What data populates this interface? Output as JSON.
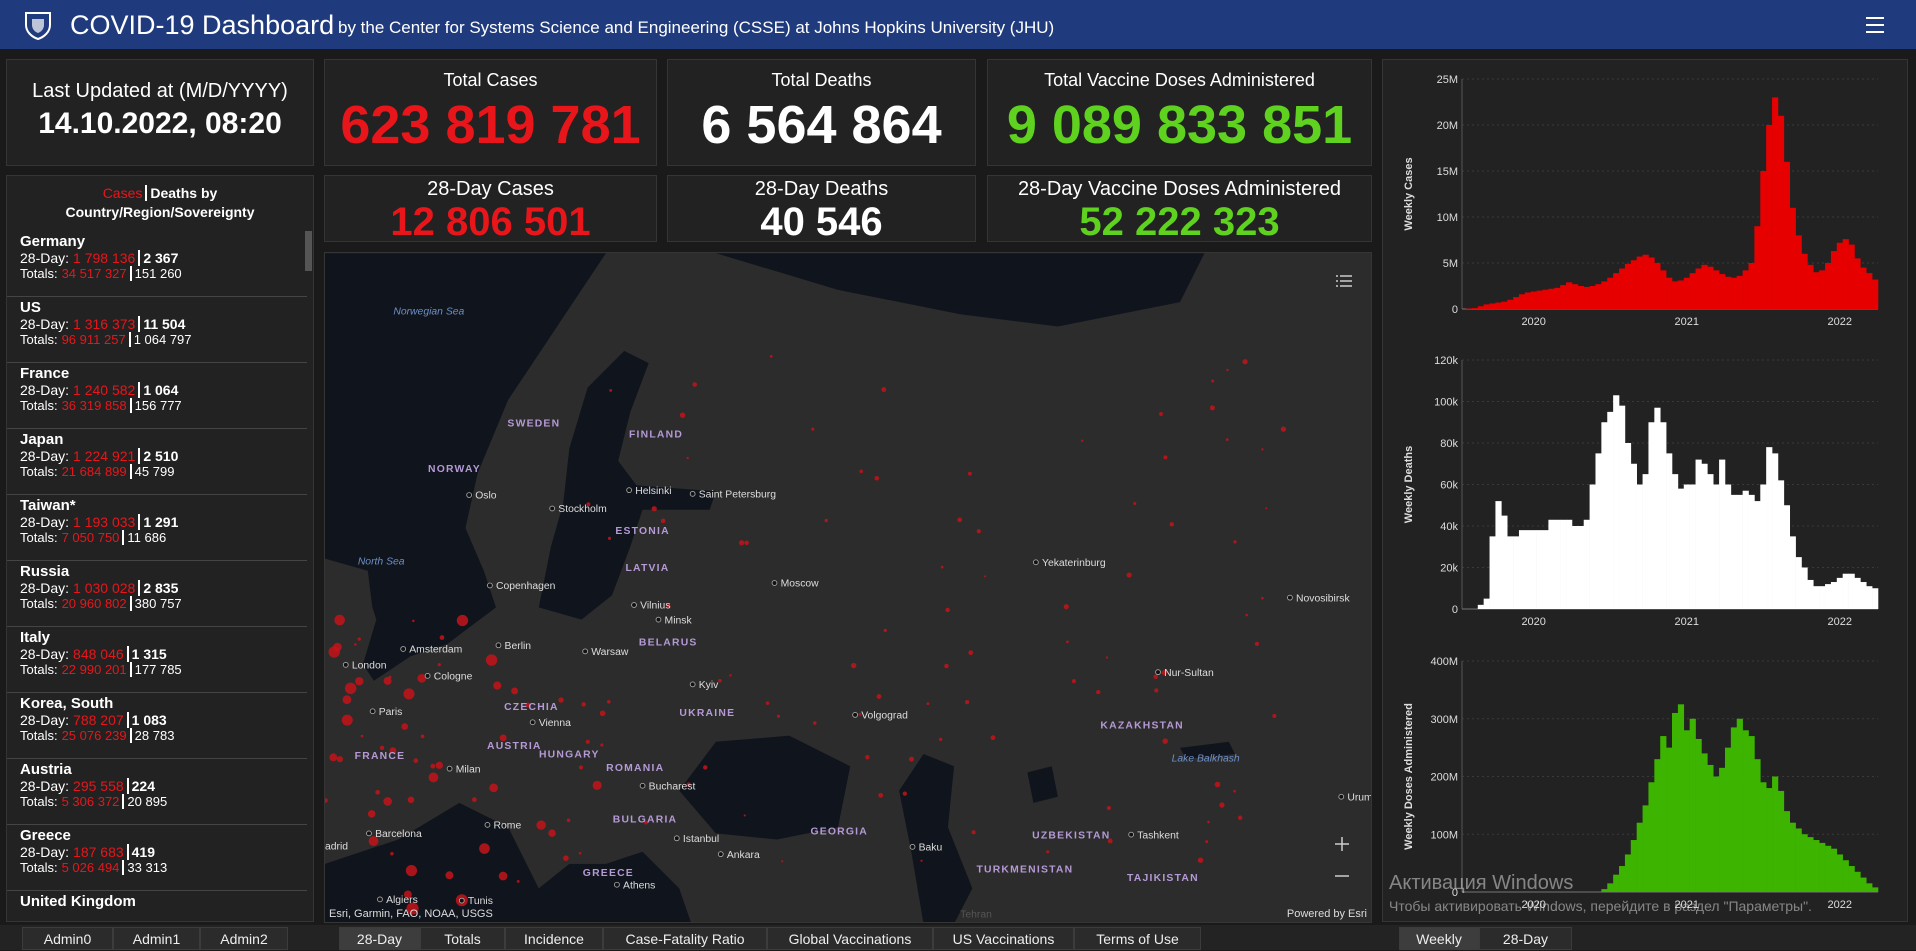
{
  "header": {
    "title": "COVID-19 Dashboard",
    "subtitle": "by the Center for Systems Science and Engineering (CSSE) at Johns Hopkins University (JHU)"
  },
  "last_updated": {
    "label": "Last Updated at (M/D/YYYY)",
    "value": "14.10.2022, 08:20"
  },
  "totals": [
    {
      "label": "Total Cases",
      "value": "623 819 781"
    },
    {
      "label": "Total Deaths",
      "value": "6 564 864"
    },
    {
      "label": "Total Vaccine Doses Administered",
      "value": "9 089 833 851"
    }
  ],
  "day28": [
    {
      "label": "28-Day Cases",
      "value": "12 806 501"
    },
    {
      "label": "28-Day Deaths",
      "value": "40 546"
    },
    {
      "label": "28-Day Vaccine Doses Administered",
      "value": "52 222 323"
    }
  ],
  "country_list": {
    "header": {
      "cases": "Cases",
      "deaths_by": "Deaths by",
      "region": "Country/Region/Sovereignty"
    },
    "labels": {
      "day28": "28-Day:",
      "totals": "Totals:"
    },
    "entries": [
      {
        "name": "Germany",
        "day28_cases": "1 798 136",
        "day28_deaths": "2 367",
        "total_cases": "34 517 327",
        "total_deaths": "151 260"
      },
      {
        "name": "US",
        "day28_cases": "1 316 373",
        "day28_deaths": "11 504",
        "total_cases": "96 911 257",
        "total_deaths": "1 064 797"
      },
      {
        "name": "France",
        "day28_cases": "1 240 582",
        "day28_deaths": "1 064",
        "total_cases": "36 319 858",
        "total_deaths": "156 777"
      },
      {
        "name": "Japan",
        "day28_cases": "1 224 921",
        "day28_deaths": "2 510",
        "total_cases": "21 684 899",
        "total_deaths": "45 799"
      },
      {
        "name": "Taiwan*",
        "day28_cases": "1 193 033",
        "day28_deaths": "1 291",
        "total_cases": "7 050 750",
        "total_deaths": "11 686"
      },
      {
        "name": "Russia",
        "day28_cases": "1 030 028",
        "day28_deaths": "2 835",
        "total_cases": "20 960 802",
        "total_deaths": "380 757"
      },
      {
        "name": "Italy",
        "day28_cases": "848 046",
        "day28_deaths": "1 315",
        "total_cases": "22 990 201",
        "total_deaths": "177 785"
      },
      {
        "name": "Korea, South",
        "day28_cases": "788 207",
        "day28_deaths": "1 083",
        "total_cases": "25 076 239",
        "total_deaths": "28 783"
      },
      {
        "name": "Austria",
        "day28_cases": "295 558",
        "day28_deaths": "224",
        "total_cases": "5 306 372",
        "total_deaths": "20 895"
      },
      {
        "name": "Greece",
        "day28_cases": "187 683",
        "day28_deaths": "419",
        "total_cases": "5 026 494",
        "total_deaths": "33 313"
      },
      {
        "name": "United Kingdom"
      }
    ]
  },
  "map": {
    "labels": [
      "Norwegian Sea",
      "North Sea",
      "SWEDEN",
      "FINLAND",
      "NORWAY",
      "ESTONIA",
      "LATVIA",
      "BELARUS",
      "UKRAINE",
      "CZECHIA",
      "AUSTRIA",
      "HUNGARY",
      "ROMANIA",
      "BULGARIA",
      "GREECE",
      "FRANCE",
      "GEORGIA",
      "KAZAKHSTAN",
      "UZBEKISTAN",
      "TURKMENISTAN",
      "TAJIKISTAN",
      "Lake Balkhash",
      "Oslo",
      "Stockholm",
      "Helsinki",
      "Saint Petersburg",
      "Copenhagen",
      "Vilnius",
      "Minsk",
      "Moscow",
      "Warsaw",
      "Berlin",
      "Amsterdam",
      "London",
      "Cologne",
      "Paris",
      "Kyiv",
      "Vienna",
      "Milan",
      "Rome",
      "Bucharest",
      "Volgograd",
      "Istanbul",
      "Ankara",
      "Athens",
      "Barcelona",
      "Algiers",
      "Tunis",
      "Baku",
      "Yekaterinburg",
      "Novosibirsk",
      "Nur-Sultan",
      "Tashkent",
      "Urum",
      "adrid",
      "Tehran"
    ],
    "attribution": "Esri, Garmin, FAO, NOAA, USGS",
    "powered_by": "Powered by Esri"
  },
  "chart_data": [
    {
      "type": "bar",
      "y_label": "Weekly Cases",
      "color": "#e60000",
      "ylim": [
        0,
        25000000
      ],
      "yticks": [
        0,
        {
          "value": 5000000,
          "label": "5M"
        },
        {
          "value": 10000000,
          "label": "10M"
        },
        {
          "value": 15000000,
          "label": "15M"
        },
        {
          "value": 20000000,
          "label": "20M"
        },
        {
          "value": 25000000,
          "label": "25M"
        }
      ],
      "grid": true,
      "categories": [
        null,
        null,
        null,
        null,
        null,
        null,
        null,
        null,
        null,
        null,
        null,
        "2020",
        null,
        null,
        null,
        null,
        null,
        null,
        null,
        null,
        null,
        null,
        null,
        null,
        null,
        null,
        null,
        null,
        null,
        null,
        null,
        null,
        null,
        null,
        null,
        null,
        null,
        "2021",
        null,
        null,
        null,
        null,
        null,
        null,
        null,
        null,
        null,
        null,
        null,
        null,
        null,
        null,
        null,
        null,
        null,
        null,
        null,
        null,
        null,
        null,
        null,
        null,
        null,
        "2022",
        null,
        null,
        null,
        null,
        null,
        null
      ],
      "values": [
        50000,
        100000,
        300000,
        500000,
        600000,
        700000,
        800000,
        1000000,
        1300000,
        1600000,
        1800000,
        1900000,
        2000000,
        2100000,
        2200000,
        2300000,
        2600000,
        2900000,
        2700000,
        2500000,
        2400000,
        2500000,
        2700000,
        3000000,
        3400000,
        3900000,
        4400000,
        4900000,
        5300000,
        5700000,
        5900000,
        5600000,
        5000000,
        4200000,
        3400000,
        3000000,
        3100000,
        3400000,
        3900000,
        4400000,
        4800000,
        4600000,
        4200000,
        3800000,
        3500000,
        3400000,
        3600000,
        4200000,
        5000000,
        9000000,
        15000000,
        20000000,
        23000000,
        21000000,
        16000000,
        11000000,
        8000000,
        6000000,
        4800000,
        4000000,
        4200000,
        5000000,
        6300000,
        7200000,
        7600000,
        7000000,
        5500000,
        4500000,
        3900000,
        3200000
      ]
    },
    {
      "type": "bar",
      "y_label": "Weekly Deaths",
      "color": "#ffffff",
      "ylim": [
        0,
        120000
      ],
      "yticks": [
        0,
        {
          "value": 20000,
          "label": "20k"
        },
        {
          "value": 40000,
          "label": "40k"
        },
        {
          "value": 60000,
          "label": "60k"
        },
        {
          "value": 80000,
          "label": "80k"
        },
        {
          "value": 100000,
          "label": "100k"
        },
        {
          "value": 120000,
          "label": "120k"
        }
      ],
      "grid": true,
      "categories": [
        null,
        null,
        null,
        null,
        null,
        null,
        null,
        null,
        null,
        null,
        null,
        "2020",
        null,
        null,
        null,
        null,
        null,
        null,
        null,
        null,
        null,
        null,
        null,
        null,
        null,
        null,
        null,
        null,
        null,
        null,
        null,
        null,
        null,
        null,
        null,
        null,
        null,
        "2021",
        null,
        null,
        null,
        null,
        null,
        null,
        null,
        null,
        null,
        null,
        null,
        null,
        null,
        null,
        null,
        null,
        null,
        null,
        null,
        null,
        null,
        null,
        null,
        null,
        null,
        "2022",
        null,
        null,
        null,
        null,
        null,
        null
      ],
      "values": [
        0,
        0,
        2000,
        5000,
        35000,
        52000,
        45000,
        35000,
        35000,
        38000,
        38000,
        38000,
        38000,
        38000,
        43000,
        43000,
        43000,
        43000,
        40000,
        40000,
        43000,
        60000,
        75000,
        90000,
        95000,
        103000,
        98000,
        80000,
        70000,
        60000,
        65000,
        90000,
        97000,
        90000,
        75000,
        65000,
        58000,
        60000,
        60000,
        72000,
        70000,
        65000,
        60000,
        72000,
        60000,
        55000,
        55000,
        57000,
        55000,
        52000,
        60000,
        78000,
        75000,
        62000,
        50000,
        35000,
        25000,
        20000,
        14000,
        11000,
        11000,
        12000,
        13000,
        15000,
        17000,
        17000,
        15000,
        13000,
        11000,
        10000
      ]
    },
    {
      "type": "bar",
      "y_label": "Weekly Doses Administered",
      "color": "#3cb400",
      "ylim": [
        0,
        400000000
      ],
      "yticks": [
        0,
        {
          "value": 100000000,
          "label": "100M"
        },
        {
          "value": 200000000,
          "label": "200M"
        },
        {
          "value": 300000000,
          "label": "300M"
        },
        {
          "value": 400000000,
          "label": "400M"
        }
      ],
      "grid": true,
      "categories": [
        null,
        null,
        null,
        null,
        null,
        null,
        null,
        null,
        null,
        null,
        null,
        "2020",
        null,
        null,
        null,
        null,
        null,
        null,
        null,
        null,
        null,
        null,
        null,
        null,
        null,
        null,
        null,
        null,
        null,
        null,
        null,
        null,
        null,
        null,
        null,
        null,
        null,
        "2021",
        null,
        null,
        null,
        null,
        null,
        null,
        null,
        null,
        null,
        null,
        null,
        null,
        null,
        null,
        null,
        null,
        null,
        null,
        null,
        null,
        null,
        null,
        null,
        null,
        null,
        "2022",
        null,
        null,
        null,
        null,
        null,
        null
      ],
      "values": [
        0,
        0,
        0,
        0,
        0,
        0,
        0,
        0,
        0,
        0,
        0,
        0,
        0,
        0,
        0,
        0,
        0,
        0,
        0,
        0,
        0,
        0,
        0,
        5000000,
        15000000,
        30000000,
        45000000,
        65000000,
        90000000,
        120000000,
        150000000,
        190000000,
        230000000,
        270000000,
        250000000,
        310000000,
        325000000,
        280000000,
        300000000,
        265000000,
        240000000,
        220000000,
        200000000,
        215000000,
        250000000,
        285000000,
        300000000,
        280000000,
        270000000,
        230000000,
        190000000,
        180000000,
        200000000,
        175000000,
        140000000,
        120000000,
        110000000,
        100000000,
        95000000,
        90000000,
        85000000,
        80000000,
        75000000,
        65000000,
        55000000,
        45000000,
        35000000,
        25000000,
        15000000,
        8000000
      ]
    }
  ],
  "tabs": {
    "left": [
      "Admin0",
      "Admin1",
      "Admin2"
    ],
    "middle": [
      "28-Day",
      "Totals",
      "Incidence",
      "Case-Fatality Ratio",
      "Global Vaccinations",
      "US Vaccinations",
      "Terms of Use"
    ],
    "right": [
      "Weekly",
      "28-Day"
    ]
  },
  "watermark": {
    "title": "Активация Windows",
    "text": "Чтобы активировать Windows, перейдите в раздел \"Параметры\"."
  }
}
